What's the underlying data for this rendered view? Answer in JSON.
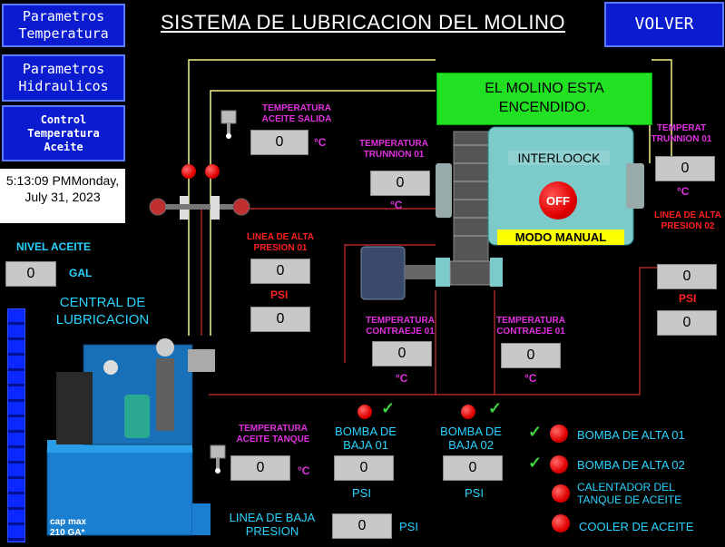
{
  "title": "SISTEMA DE LUBRICACION DEL MOLINO",
  "nav": {
    "temp_params": "Parametros\nTemperatura",
    "hyd_params": "Parametros\nHidraulicos",
    "control_temp": "Control\nTemperatura\nAceite",
    "back": "VOLVER"
  },
  "datetime": "5:13:09 PMMonday, July 31, 2023",
  "mill_status": "EL MOLINO ESTA ENCENDIDO.",
  "interlock": "INTERLOOCK",
  "off_label": "OFF",
  "mode": "MODO MANUAL",
  "nivel": {
    "label": "NIVEL ACEITE",
    "value": "0",
    "unit": "GAL"
  },
  "central": "CENTRAL DE LUBRICACION",
  "cap": "cap max\n210 GA*",
  "temp_aceite_salida": {
    "label": "TEMPERATURA ACEITE SALIDA",
    "value": "0",
    "unit": "°C"
  },
  "temp_trunnion_01_left": {
    "label": "TEMPERATURA TRUNNION 01",
    "value": "0",
    "unit": "°C"
  },
  "temp_trunnion_01_right": {
    "label": "TEMPERAT TRUNNION 01",
    "value": "0",
    "unit": "°C"
  },
  "linea_alta_01": {
    "label": "LINEA DE ALTA PRESION 01",
    "value1": "0",
    "unit": "PSI",
    "value2": "0"
  },
  "linea_alta_02": {
    "label": "LINEA DE ALTA PRESION 02",
    "value1": "0",
    "unit": "PSI",
    "value2": "0"
  },
  "temp_contraeje_left": {
    "label": "TEMPERATURA CONTRAEJE 01",
    "value": "0",
    "unit": "°C"
  },
  "temp_contraeje_right": {
    "label": "TEMPERATURA CONTRAEJE 01",
    "value": "0",
    "unit": "°C"
  },
  "temp_aceite_tanque": {
    "label": "TEMPERATURA ACEITE TANQUE",
    "value": "0",
    "unit": "°C"
  },
  "bomba_baja_01": {
    "label": "BOMBA DE BAJA 01",
    "value": "0",
    "unit": "PSI"
  },
  "bomba_baja_02": {
    "label": "BOMBA DE BAJA 02",
    "value": "0",
    "unit": "PSI"
  },
  "linea_baja": {
    "label": "LINEA DE BAJA PRESION",
    "value": "0",
    "unit": "PSI"
  },
  "status_list": [
    {
      "label": "BOMBA DE ALTA 01"
    },
    {
      "label": "BOMBA DE ALTA 02"
    },
    {
      "label": "CALENTADOR DEL TANQUE DE ACEITE"
    },
    {
      "label": "COOLER DE ACEITE"
    }
  ],
  "check_mark": "✓",
  "colors": {
    "nav_bg": "#0a1bd0",
    "status_green": "#22e022",
    "mode_yellow": "#ffff00",
    "led_red": "#e00000",
    "label_magenta": "#e030e0",
    "label_cyan": "#2ad3ff"
  }
}
